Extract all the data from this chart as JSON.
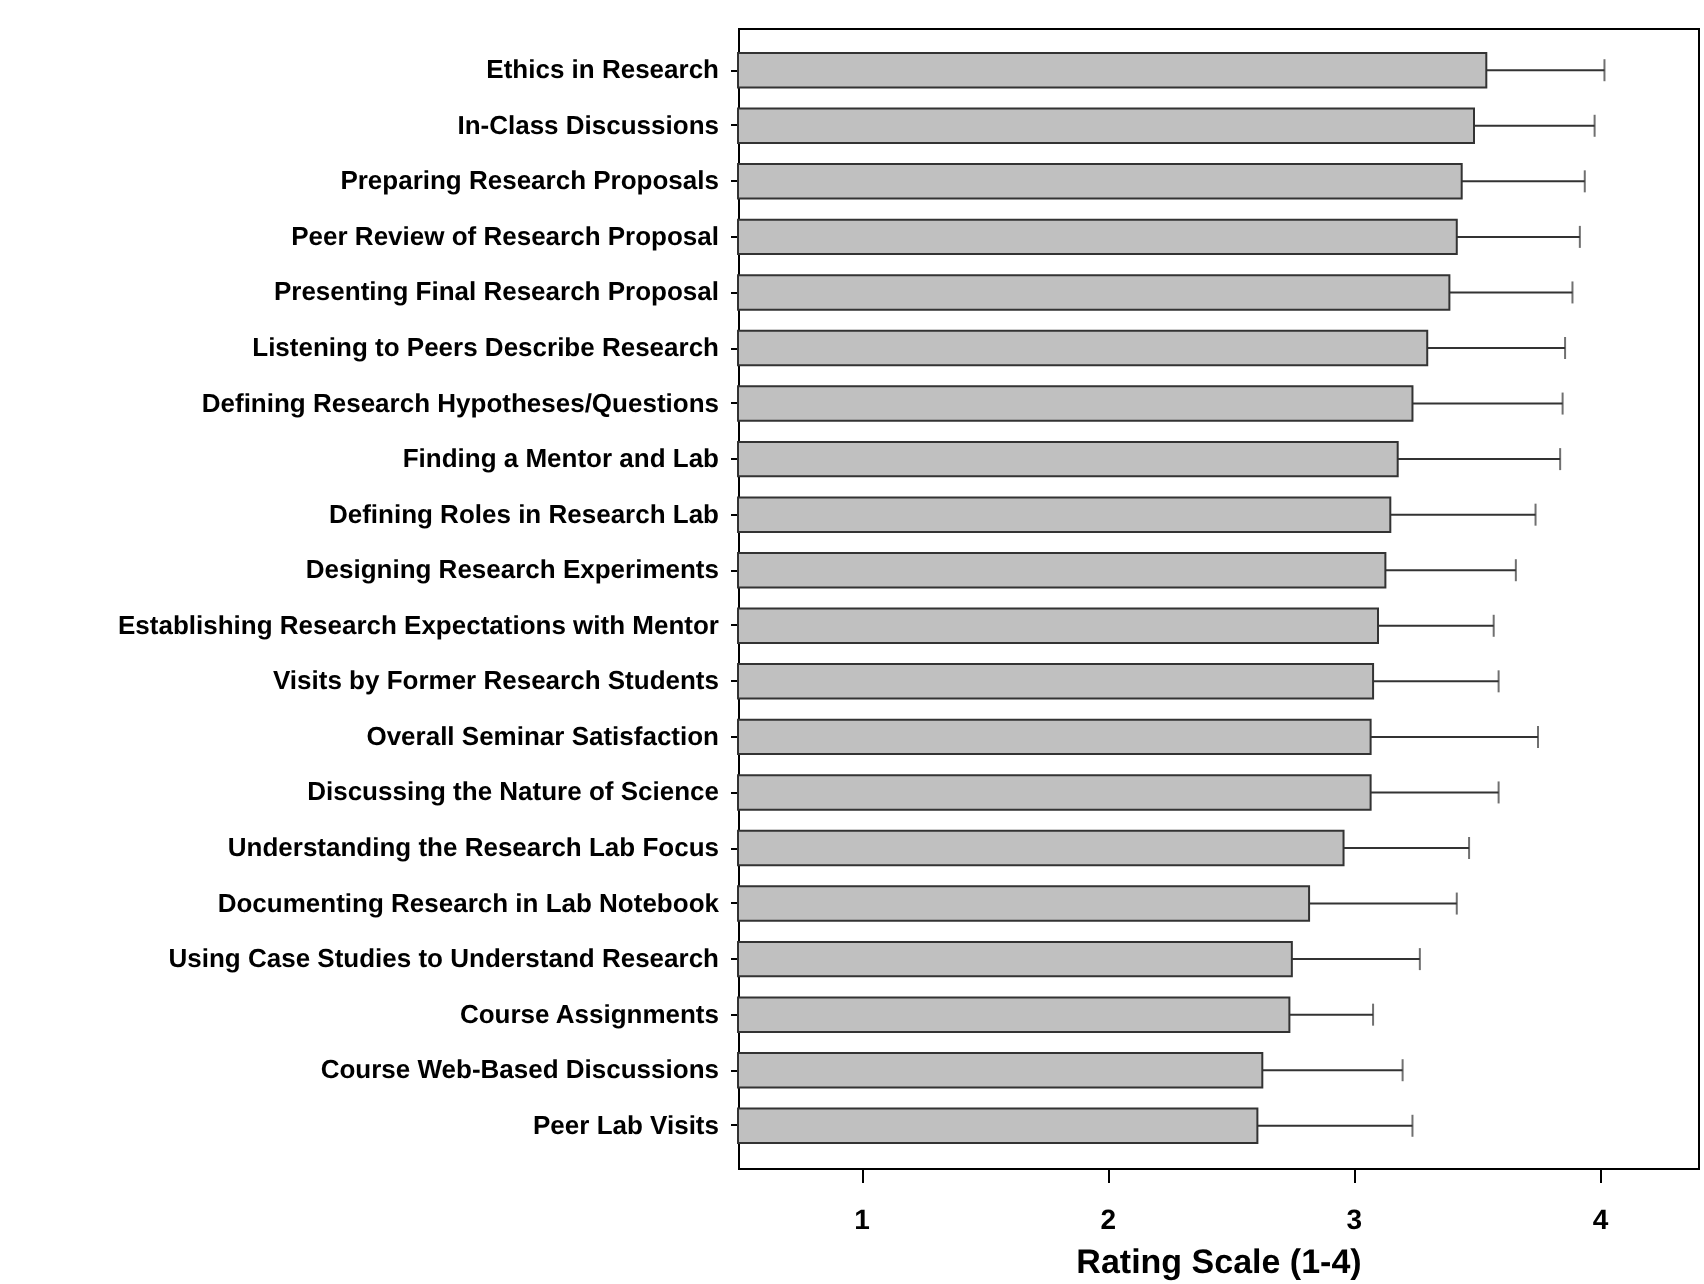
{
  "chart_data": {
    "type": "bar",
    "orientation": "horizontal",
    "xlabel": "Rating Scale (1-4)",
    "categories": [
      "Ethics in Research",
      "In-Class Discussions",
      "Preparing Research Proposals",
      "Peer Review of Research Proposal",
      "Presenting Final Research Proposal",
      "Listening to Peers Describe Research",
      "Defining Research Hypotheses/Questions",
      "Finding a Mentor and Lab",
      "Defining Roles in Research Lab",
      "Designing Research Experiments",
      "Establishing Research Expectations with Mentor",
      "Visits by Former Research Students",
      "Overall Seminar Satisfaction",
      "Discussing the Nature of Science",
      "Understanding the Research Lab Focus",
      "Documenting Research in Lab Notebook",
      "Using Case Studies to Understand Research",
      "Course Assignments",
      "Course Web-Based Discussions",
      "Peer Lab Visits"
    ],
    "values": [
      3.54,
      3.49,
      3.44,
      3.42,
      3.39,
      3.3,
      3.24,
      3.18,
      3.15,
      3.13,
      3.1,
      3.08,
      3.07,
      3.07,
      2.96,
      2.82,
      2.75,
      2.74,
      2.63,
      2.61
    ],
    "errors": [
      [
        3.54,
        4.02
      ],
      [
        3.49,
        3.98
      ],
      [
        3.44,
        3.94
      ],
      [
        3.42,
        3.92
      ],
      [
        3.39,
        3.89
      ],
      [
        3.3,
        3.86
      ],
      [
        3.24,
        3.85
      ],
      [
        3.18,
        3.84
      ],
      [
        3.15,
        3.74
      ],
      [
        3.13,
        3.66
      ],
      [
        3.1,
        3.57
      ],
      [
        3.08,
        3.59
      ],
      [
        3.07,
        3.75
      ],
      [
        3.07,
        3.59
      ],
      [
        2.96,
        3.47
      ],
      [
        2.82,
        3.42
      ],
      [
        2.75,
        3.27
      ],
      [
        2.74,
        3.08
      ],
      [
        2.63,
        3.2
      ],
      [
        2.61,
        3.24
      ]
    ],
    "color": "#c0c0c0",
    "xlim": [
      0.5,
      4.4
    ],
    "xticks": [
      1,
      2,
      3,
      4
    ],
    "grid": false
  }
}
